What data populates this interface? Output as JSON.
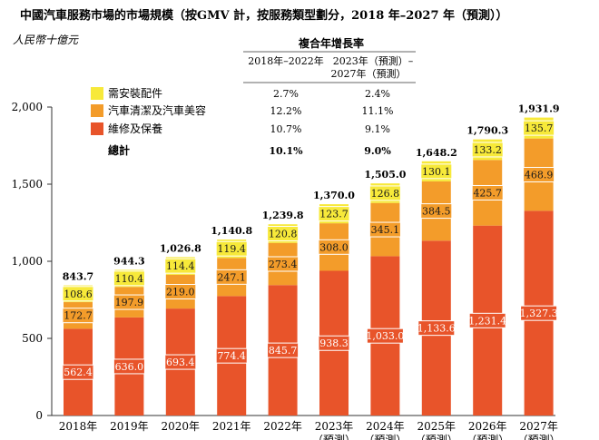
{
  "chart_data": {
    "type": "stacked-bar",
    "title": "中國汽車服務市場的市場規模（按GMV 計，按服務類型劃分，2018 年–2027 年（預測））",
    "ylabel": "人民幣十億元",
    "ylim": [
      0,
      2000
    ],
    "yticks": [
      0,
      500,
      1000,
      1500,
      2000
    ],
    "ytick_labels": [
      "0",
      "500",
      "1,000",
      "1,500",
      "2,000"
    ],
    "categories": [
      "2018年",
      "2019年",
      "2020年",
      "2021年",
      "2022年",
      "2023年",
      "2024年",
      "2025年",
      "2026年",
      "2027年"
    ],
    "category_sublabel": "（預測）",
    "forecast_from_index": 5,
    "series": [
      {
        "name": "維修及保養",
        "color": "#E8542A",
        "values": [
          562.4,
          636.0,
          693.4,
          774.4,
          845.7,
          938.3,
          1033.0,
          1133.6,
          1231.4,
          1327.3
        ],
        "labels": [
          "562.4",
          "636.0",
          "693.4",
          "774.4",
          "845.7",
          "938.3",
          "1,033.0",
          "1,133.6",
          "1,231.4",
          "1,327.3"
        ]
      },
      {
        "name": "汽車清潔及汽車美容",
        "color": "#F39C2A",
        "values": [
          172.7,
          197.9,
          219.0,
          247.1,
          273.4,
          308.0,
          345.1,
          384.5,
          425.7,
          468.9
        ],
        "labels": [
          "172.7",
          "197.9",
          "219.0",
          "247.1",
          "273.4",
          "308.0",
          "345.1",
          "384.5",
          "425.7",
          "468.9"
        ]
      },
      {
        "name": "需安裝配件",
        "color": "#F7E93A",
        "values": [
          108.6,
          110.4,
          114.4,
          119.4,
          120.8,
          123.7,
          126.8,
          130.1,
          133.2,
          135.7
        ],
        "labels": [
          "108.6",
          "110.4",
          "114.4",
          "119.4",
          "120.8",
          "123.7",
          "126.8",
          "130.1",
          "133.2",
          "135.7"
        ]
      }
    ],
    "totals": [
      843.7,
      944.3,
      1026.8,
      1140.8,
      1239.8,
      1370.0,
      1505.0,
      1648.2,
      1790.3,
      1931.9
    ],
    "total_labels": [
      "843.7",
      "944.3",
      "1,026.8",
      "1,140.8",
      "1,239.8",
      "1,370.0",
      "1,505.0",
      "1,648.2",
      "1,790.3",
      "1,931.9"
    ],
    "cagr_table": {
      "header": "複合年增長率",
      "col1": "2018年–2022年",
      "col2_line1": "2023年（預測）–",
      "col2_line2": "2027年（預測）",
      "rows": [
        {
          "name": "需安裝配件",
          "color": "#F7E93A",
          "v1": "2.7%",
          "v2": "2.4%"
        },
        {
          "name": "汽車清潔及汽車美容",
          "color": "#F39C2A",
          "v1": "12.2%",
          "v2": "11.1%"
        },
        {
          "name": "維修及保養",
          "color": "#E8542A",
          "v1": "10.7%",
          "v2": "9.1%"
        }
      ],
      "total_row": {
        "name": "總計",
        "v1": "10.1%",
        "v2": "9.0%"
      }
    }
  }
}
